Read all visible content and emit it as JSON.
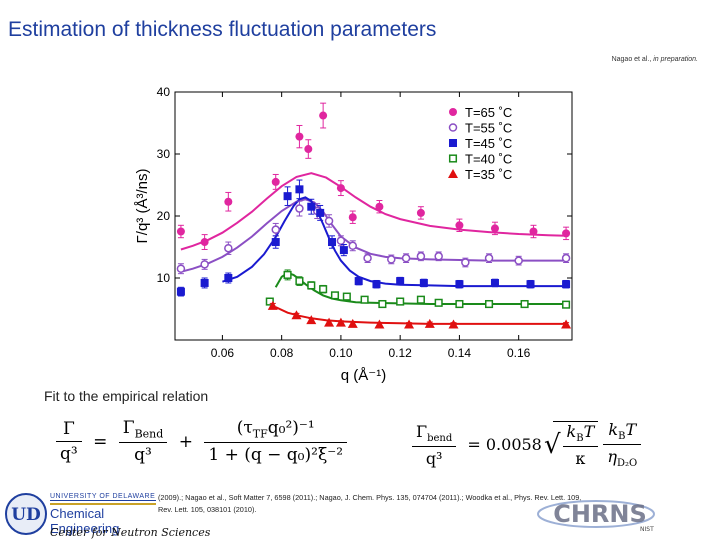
{
  "slide": {
    "title": "Estimation of thickness fluctuation parameters",
    "citation_prefix": "Nagao et al.,",
    "citation_status": "in preparation.",
    "fit_label": "Fit to the empirical relation",
    "references_line1": "(2009).; Nagao et al., Soft Matter 7, 6598 (2011).; Nagao, J. Chem. Phys. 135, 074704 (2011).; Woodka et al., Phys. Rev. Lett. 109,",
    "references_line2": "Rev. Lett. 105, 038101 (2010).",
    "logo_university": "UNIVERSITY OF DELAWARE",
    "logo_department": "Chemical Engineering",
    "logo_monogram": "UD",
    "center_name": "Center for Neutron Sciences",
    "chrns_logo": "CHRNS",
    "chrns_sub": "NIST"
  },
  "equation": {
    "lhs_num": "Γ",
    "lhs_den": "q³",
    "eq_sign": "=",
    "t1_num": "Γ",
    "t1_num_sub": "Bend",
    "t1_den": "q³",
    "plus": "+",
    "t2_num": "(τ",
    "t2_num_sub": "TF",
    "t2_num_rest": "q₀²)⁻¹",
    "t2_den": "1 + (q − q₀)²ξ⁻²",
    "r_num": "Γ",
    "r_num_sub": "bend",
    "r_den": "q³",
    "r_eq": "= 0.0058",
    "sqrt_num": "k",
    "sqrt_num_sub": "B",
    "sqrt_num_rest": "T",
    "sqrt_den": "κ",
    "last_num": "k",
    "last_num_sub": "B",
    "last_num_rest": "T",
    "last_den": "η",
    "last_den_sub": "D₂O"
  },
  "chart_data": {
    "type": "scatter",
    "title": "",
    "xlabel": "q (Å⁻¹)",
    "ylabel": "Γ/q³ (Å³/ns)",
    "xlim": [
      0.044,
      0.178
    ],
    "ylim": [
      0,
      40
    ],
    "x_ticks": [
      0.06,
      0.08,
      0.1,
      0.12,
      0.14,
      0.16
    ],
    "x_tick_labels": [
      "0.06",
      "0.08",
      "0.10",
      "0.12",
      "0.14",
      "0.16"
    ],
    "y_ticks": [
      10,
      20,
      30,
      40
    ],
    "y_tick_labels": [
      "10",
      "20",
      "30",
      "40"
    ],
    "legend_position": "top-right",
    "series": [
      {
        "name": "T=65 ˚C",
        "color": "#e0269f",
        "marker": "circle-filled",
        "x": [
          0.046,
          0.054,
          0.062,
          0.078,
          0.086,
          0.089,
          0.094,
          0.1,
          0.104,
          0.113,
          0.127,
          0.14,
          0.152,
          0.165,
          0.176
        ],
        "y": [
          17.5,
          15.8,
          22.3,
          25.5,
          32.8,
          30.8,
          36.2,
          24.5,
          19.8,
          21.5,
          20.5,
          18.5,
          18.0,
          17.5,
          17.2
        ],
        "err": [
          1.0,
          1.2,
          1.5,
          1.2,
          1.8,
          1.5,
          2.0,
          1.2,
          1.0,
          1.0,
          1.0,
          1.0,
          1.0,
          1.0,
          1.0
        ],
        "fit_x": [
          0.046,
          0.05,
          0.055,
          0.06,
          0.065,
          0.07,
          0.075,
          0.08,
          0.085,
          0.09,
          0.095,
          0.1,
          0.105,
          0.11,
          0.115,
          0.12,
          0.13,
          0.14,
          0.15,
          0.16,
          0.17,
          0.176
        ],
        "fit_y": [
          14.6,
          15.2,
          16.1,
          17.3,
          18.9,
          20.7,
          22.8,
          24.8,
          26.3,
          26.9,
          26.2,
          24.7,
          23.0,
          21.5,
          20.3,
          19.5,
          18.4,
          17.8,
          17.4,
          17.1,
          16.9,
          16.8
        ]
      },
      {
        "name": "T=55 ˚C",
        "color": "#8b4fc4",
        "marker": "circle-open",
        "x": [
          0.046,
          0.054,
          0.062,
          0.078,
          0.086,
          0.092,
          0.096,
          0.1,
          0.104,
          0.109,
          0.117,
          0.122,
          0.127,
          0.133,
          0.142,
          0.15,
          0.16,
          0.176
        ],
        "y": [
          11.5,
          12.2,
          14.8,
          17.8,
          21.2,
          20.8,
          19.2,
          16.0,
          15.2,
          13.2,
          13.0,
          13.2,
          13.5,
          13.5,
          12.5,
          13.2,
          12.8,
          13.2
        ],
        "err": [
          0.8,
          0.8,
          1.0,
          1.0,
          1.2,
          1.2,
          1.0,
          0.8,
          0.8,
          0.7,
          0.7,
          0.7,
          0.7,
          0.7,
          0.7,
          0.7,
          0.7,
          0.7
        ],
        "fit_x": [
          0.046,
          0.05,
          0.055,
          0.06,
          0.065,
          0.07,
          0.075,
          0.08,
          0.085,
          0.088,
          0.091,
          0.094,
          0.097,
          0.1,
          0.105,
          0.11,
          0.115,
          0.12,
          0.13,
          0.14,
          0.15,
          0.16,
          0.17,
          0.176
        ],
        "fit_y": [
          11.0,
          11.5,
          12.3,
          13.4,
          14.9,
          16.7,
          18.8,
          20.8,
          22.3,
          22.7,
          22.2,
          20.7,
          18.6,
          16.7,
          14.9,
          13.9,
          13.4,
          13.2,
          13.0,
          12.9,
          12.8,
          12.8,
          12.8,
          12.8
        ]
      },
      {
        "name": "T=45 ˚C",
        "color": "#1a1ad0",
        "marker": "square-filled",
        "x": [
          0.046,
          0.054,
          0.062,
          0.078,
          0.082,
          0.086,
          0.09,
          0.093,
          0.097,
          0.101,
          0.106,
          0.112,
          0.12,
          0.128,
          0.14,
          0.152,
          0.164,
          0.176
        ],
        "y": [
          7.8,
          9.2,
          10.0,
          15.8,
          23.2,
          24.3,
          21.5,
          20.5,
          15.8,
          14.5,
          9.5,
          9.0,
          9.5,
          9.2,
          9.0,
          9.2,
          9.0,
          9.0
        ],
        "err": [
          0.7,
          0.8,
          0.8,
          1.0,
          1.5,
          1.5,
          1.2,
          1.2,
          1.0,
          0.9,
          0.6,
          0.6,
          0.6,
          0.6,
          0.6,
          0.6,
          0.6,
          0.6
        ],
        "fit_x": [
          0.06,
          0.065,
          0.07,
          0.074,
          0.078,
          0.081,
          0.084,
          0.086,
          0.088,
          0.09,
          0.092,
          0.094,
          0.096,
          0.098,
          0.1,
          0.103,
          0.106,
          0.11,
          0.115,
          0.12,
          0.13,
          0.14,
          0.15,
          0.16,
          0.17,
          0.176
        ],
        "fit_y": [
          9.4,
          10.2,
          11.8,
          13.8,
          16.6,
          19.2,
          21.6,
          22.7,
          23.0,
          22.4,
          20.8,
          18.7,
          16.4,
          14.4,
          12.8,
          11.2,
          10.2,
          9.5,
          9.1,
          8.9,
          8.8,
          8.7,
          8.7,
          8.7,
          8.7,
          8.7
        ]
      },
      {
        "name": "T=40 ˚C",
        "color": "#1a8a1a",
        "marker": "square-open",
        "x": [
          0.076,
          0.082,
          0.086,
          0.09,
          0.094,
          0.098,
          0.102,
          0.108,
          0.114,
          0.12,
          0.127,
          0.133,
          0.14,
          0.15,
          0.162,
          0.176
        ],
        "y": [
          6.2,
          10.5,
          9.5,
          8.8,
          8.2,
          7.2,
          7.0,
          6.5,
          5.8,
          6.2,
          6.5,
          6.0,
          5.8,
          5.8,
          5.8,
          5.7
        ],
        "err": [
          0.5,
          0.8,
          0.7,
          0.6,
          0.6,
          0.5,
          0.5,
          0.5,
          0.5,
          0.5,
          0.5,
          0.5,
          0.5,
          0.5,
          0.5,
          0.5
        ],
        "fit_x": [
          0.078,
          0.08,
          0.082,
          0.084,
          0.086,
          0.088,
          0.091,
          0.094,
          0.097,
          0.1,
          0.105,
          0.11,
          0.12,
          0.13,
          0.14,
          0.15,
          0.16,
          0.17,
          0.176
        ],
        "fit_y": [
          8.5,
          10.2,
          10.8,
          10.5,
          9.8,
          9.0,
          8.0,
          7.2,
          6.7,
          6.4,
          6.1,
          6.0,
          5.9,
          5.8,
          5.8,
          5.8,
          5.8,
          5.8,
          5.8
        ]
      },
      {
        "name": "T=35 ˚C",
        "color": "#e01010",
        "marker": "triangle-filled",
        "x": [
          0.077,
          0.085,
          0.09,
          0.096,
          0.1,
          0.104,
          0.113,
          0.123,
          0.13,
          0.138,
          0.176
        ],
        "y": [
          5.5,
          4.0,
          3.2,
          2.8,
          2.8,
          2.6,
          2.5,
          2.5,
          2.6,
          2.5,
          2.5
        ],
        "err": [
          0.4,
          0.3,
          0.3,
          0.3,
          0.3,
          0.3,
          0.3,
          0.3,
          0.3,
          0.3,
          0.3
        ],
        "fit_x": [
          0.078,
          0.082,
          0.086,
          0.09,
          0.095,
          0.1,
          0.11,
          0.12,
          0.13,
          0.14,
          0.15,
          0.16,
          0.17,
          0.176
        ],
        "fit_y": [
          5.3,
          4.4,
          3.9,
          3.5,
          3.2,
          3.0,
          2.8,
          2.7,
          2.6,
          2.6,
          2.6,
          2.6,
          2.6,
          2.6
        ]
      }
    ]
  }
}
